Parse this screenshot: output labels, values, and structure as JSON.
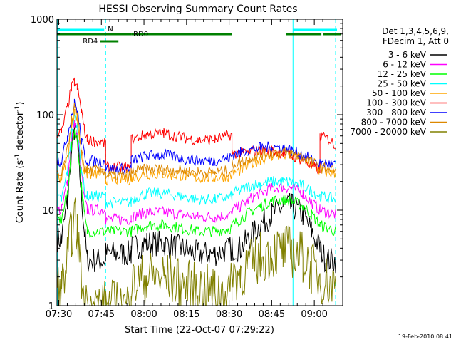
{
  "chart_data": {
    "type": "line",
    "title": "HESSI Observing Summary Count Rates",
    "xlabel": "Start Time (22-Oct-07 07:29:22)",
    "ylabel": "Count Rate (s⁻¹ detector⁻¹)",
    "ylabel_base": "Count Rate (s",
    "ylabel_exp1": "-1",
    "ylabel_mid": " detector",
    "ylabel_exp2": "-1",
    "ylabel_end": ")",
    "y_scale": "log",
    "ylim": [
      1,
      1000
    ],
    "xlim_minutes_from_0730": [
      -0.63,
      100
    ],
    "x_ticks": [
      {
        "label": "07:30",
        "min": 0
      },
      {
        "label": "07:45",
        "min": 15
      },
      {
        "label": "08:00",
        "min": 30
      },
      {
        "label": "08:15",
        "min": 45
      },
      {
        "label": "08:30",
        "min": 60
      },
      {
        "label": "08:45",
        "min": 75
      },
      {
        "label": "09:00",
        "min": 90
      }
    ],
    "y_ticks": [
      {
        "label": "1",
        "value": 1
      },
      {
        "label": "10",
        "value": 10
      },
      {
        "label": "100",
        "value": 100
      },
      {
        "label": "1000",
        "value": 1000
      }
    ],
    "legend_header": [
      "Det 1,3,4,5,6,9,",
      "FDecim 1, Att 0"
    ],
    "legend_position": "right",
    "footer_date": "19-Feb-2010 08:41",
    "flags": [
      {
        "label": "N",
        "color": "#00ffff",
        "segments": [
          [
            -0.63,
            16
          ],
          [
            82.5,
            98
          ]
        ]
      },
      {
        "label": "RD0",
        "color": "#008000",
        "segments": [
          [
            -0.63,
            25.5
          ],
          [
            25.5,
            61
          ],
          [
            80,
            92.5
          ],
          [
            93,
            99.5
          ]
        ]
      },
      {
        "label": "RD4",
        "color": "#008000",
        "segments": [
          [
            14.5,
            21
          ]
        ]
      }
    ],
    "vlines": [
      {
        "min": -0.5,
        "style": "solid",
        "color": "#00ffff"
      },
      {
        "min": 16.5,
        "style": "dashed",
        "color": "#00ffff"
      },
      {
        "min": 82.5,
        "style": "solid",
        "color": "#00ffff"
      },
      {
        "min": 97.5,
        "style": "dashed",
        "color": "#00ffff"
      }
    ],
    "series": [
      {
        "name": "3 - 6 keV",
        "color": "#000000",
        "points": [
          [
            -0.5,
            5
          ],
          [
            1,
            5
          ],
          [
            3,
            12
          ],
          [
            4.5,
            40
          ],
          [
            5.5,
            70
          ],
          [
            6.5,
            50
          ],
          [
            8,
            15
          ],
          [
            9,
            6
          ],
          [
            10,
            3
          ],
          [
            16.5,
            3
          ],
          [
            16.5,
            3.5
          ],
          [
            25.5,
            3.5
          ],
          [
            25.5,
            4
          ],
          [
            31,
            4.5
          ],
          [
            37,
            4.5
          ],
          [
            43,
            4
          ],
          [
            49,
            3.5
          ],
          [
            55,
            3.5
          ],
          [
            61,
            4
          ],
          [
            61,
            4
          ],
          [
            64,
            4
          ],
          [
            67,
            5
          ],
          [
            71,
            7
          ],
          [
            75,
            9
          ],
          [
            79,
            11
          ],
          [
            82,
            11
          ],
          [
            86,
            9
          ],
          [
            89,
            6
          ],
          [
            92,
            4
          ],
          [
            94,
            3
          ],
          [
            97.5,
            3
          ]
        ]
      },
      {
        "name": "6 - 12 keV",
        "color": "#ff00ff",
        "points": [
          [
            -0.5,
            10
          ],
          [
            1,
            10
          ],
          [
            3,
            20
          ],
          [
            4.5,
            55
          ],
          [
            5.5,
            80
          ],
          [
            6.5,
            62
          ],
          [
            8,
            25
          ],
          [
            9,
            13
          ],
          [
            10,
            10
          ],
          [
            16.5,
            10
          ],
          [
            16.5,
            8
          ],
          [
            25.5,
            8
          ],
          [
            25.5,
            8.5
          ],
          [
            31,
            9.5
          ],
          [
            37,
            9.5
          ],
          [
            43,
            9
          ],
          [
            49,
            8.5
          ],
          [
            55,
            8.5
          ],
          [
            61,
            9
          ],
          [
            61,
            10
          ],
          [
            64,
            11
          ],
          [
            67,
            13
          ],
          [
            71,
            15
          ],
          [
            75,
            17
          ],
          [
            79,
            17.5
          ],
          [
            82,
            17
          ],
          [
            86,
            15
          ],
          [
            89,
            12
          ],
          [
            92,
            10
          ],
          [
            97.5,
            9
          ]
        ]
      },
      {
        "name": "12 - 25 keV",
        "color": "#00ff00",
        "points": [
          [
            -0.5,
            8
          ],
          [
            1,
            8
          ],
          [
            3,
            15
          ],
          [
            4.5,
            45
          ],
          [
            5.5,
            70
          ],
          [
            6.5,
            55
          ],
          [
            8,
            18
          ],
          [
            9,
            9
          ],
          [
            10,
            6
          ],
          [
            16.5,
            6
          ],
          [
            16.5,
            6
          ],
          [
            25.5,
            6
          ],
          [
            25.5,
            6
          ],
          [
            31,
            7
          ],
          [
            37,
            7
          ],
          [
            43,
            6.5
          ],
          [
            49,
            6
          ],
          [
            55,
            6
          ],
          [
            61,
            6.5
          ],
          [
            61,
            7
          ],
          [
            64,
            8
          ],
          [
            67,
            9.5
          ],
          [
            71,
            11
          ],
          [
            75,
            12.5
          ],
          [
            79,
            13
          ],
          [
            82,
            12.5
          ],
          [
            86,
            11
          ],
          [
            89,
            9
          ],
          [
            92,
            7
          ],
          [
            97.5,
            6
          ]
        ]
      },
      {
        "name": "25 - 50 keV",
        "color": "#00ffff",
        "points": [
          [
            -0.5,
            13
          ],
          [
            1,
            13
          ],
          [
            3,
            25
          ],
          [
            4.5,
            65
          ],
          [
            5.5,
            95
          ],
          [
            6.5,
            75
          ],
          [
            8,
            28
          ],
          [
            9,
            16
          ],
          [
            10,
            14
          ],
          [
            16.5,
            14
          ],
          [
            16.5,
            12
          ],
          [
            25.5,
            12
          ],
          [
            25.5,
            13
          ],
          [
            31,
            15
          ],
          [
            37,
            15
          ],
          [
            43,
            14
          ],
          [
            49,
            13
          ],
          [
            55,
            13
          ],
          [
            61,
            14
          ],
          [
            61,
            15
          ],
          [
            64,
            16
          ],
          [
            67,
            18
          ],
          [
            71,
            19
          ],
          [
            75,
            20
          ],
          [
            79,
            20
          ],
          [
            82,
            19.5
          ],
          [
            86,
            18
          ],
          [
            89,
            16
          ],
          [
            92,
            14
          ],
          [
            97.5,
            13
          ]
        ]
      },
      {
        "name": "50 - 100 keV",
        "color": "#ffa500",
        "points": [
          [
            -0.5,
            22
          ],
          [
            1,
            22
          ],
          [
            3,
            35
          ],
          [
            4.5,
            80
          ],
          [
            5.5,
            110
          ],
          [
            6.5,
            90
          ],
          [
            8,
            38
          ],
          [
            9,
            26
          ],
          [
            10,
            24
          ],
          [
            16.5,
            24
          ],
          [
            16.5,
            21
          ],
          [
            25.5,
            21
          ],
          [
            25.5,
            22
          ],
          [
            31,
            24
          ],
          [
            37,
            24
          ],
          [
            43,
            23
          ],
          [
            49,
            22
          ],
          [
            55,
            22
          ],
          [
            61,
            23
          ],
          [
            61,
            24
          ],
          [
            64,
            26
          ],
          [
            67,
            30
          ],
          [
            71,
            34
          ],
          [
            75,
            37
          ],
          [
            79,
            38
          ],
          [
            82,
            37
          ],
          [
            86,
            34
          ],
          [
            89,
            30
          ],
          [
            92,
            26
          ],
          [
            97.5,
            24
          ]
        ]
      },
      {
        "name": "100 - 300 keV",
        "color": "#ff0000",
        "points": [
          [
            -0.5,
            65
          ],
          [
            1,
            65
          ],
          [
            3,
            120
          ],
          [
            4.5,
            190
          ],
          [
            5.5,
            220
          ],
          [
            6.5,
            190
          ],
          [
            8,
            110
          ],
          [
            9,
            70
          ],
          [
            10,
            55
          ],
          [
            16.5,
            50
          ],
          [
            16.5,
            28
          ],
          [
            25.5,
            28
          ],
          [
            25.5,
            55
          ],
          [
            31,
            62
          ],
          [
            37,
            64
          ],
          [
            43,
            58
          ],
          [
            49,
            54
          ],
          [
            55,
            55
          ],
          [
            61,
            62
          ],
          [
            61,
            40
          ],
          [
            64,
            39
          ],
          [
            67,
            41
          ],
          [
            71,
            42
          ],
          [
            75,
            42
          ],
          [
            79,
            40
          ],
          [
            82,
            37
          ],
          [
            86,
            34
          ],
          [
            88,
            30
          ],
          [
            90,
            28
          ],
          [
            92,
            26
          ],
          [
            92,
            60
          ],
          [
            95,
            55
          ],
          [
            97.5,
            48
          ]
        ]
      },
      {
        "name": "300 - 800 keV",
        "color": "#0000ff",
        "points": [
          [
            -0.5,
            33
          ],
          [
            1,
            33
          ],
          [
            3,
            60
          ],
          [
            4.5,
            100
          ],
          [
            5.5,
            130
          ],
          [
            6.5,
            110
          ],
          [
            8,
            55
          ],
          [
            9,
            38
          ],
          [
            10,
            33
          ],
          [
            16.5,
            32
          ],
          [
            16.5,
            27
          ],
          [
            25.5,
            27
          ],
          [
            25.5,
            33
          ],
          [
            31,
            37
          ],
          [
            37,
            38
          ],
          [
            43,
            35
          ],
          [
            49,
            33
          ],
          [
            55,
            33
          ],
          [
            61,
            36
          ],
          [
            61,
            38
          ],
          [
            64,
            40
          ],
          [
            67,
            43
          ],
          [
            71,
            45
          ],
          [
            75,
            46
          ],
          [
            79,
            45
          ],
          [
            82,
            42
          ],
          [
            86,
            38
          ],
          [
            89,
            34
          ],
          [
            92,
            31
          ],
          [
            97.5,
            30
          ]
        ]
      },
      {
        "name": "800 - 7000 keV",
        "color": "#dd8800",
        "points": [
          [
            -0.5,
            23
          ],
          [
            1,
            23
          ],
          [
            3,
            42
          ],
          [
            4.5,
            85
          ],
          [
            5.5,
            118
          ],
          [
            6.5,
            95
          ],
          [
            8,
            42
          ],
          [
            9,
            28
          ],
          [
            10,
            26
          ],
          [
            16.5,
            26
          ],
          [
            16.5,
            23
          ],
          [
            25.5,
            23
          ],
          [
            25.5,
            25
          ],
          [
            31,
            27
          ],
          [
            37,
            27
          ],
          [
            43,
            26
          ],
          [
            49,
            25
          ],
          [
            55,
            25
          ],
          [
            61,
            26
          ],
          [
            61,
            30
          ],
          [
            64,
            32
          ],
          [
            67,
            35
          ],
          [
            71,
            38
          ],
          [
            75,
            40
          ],
          [
            79,
            40
          ],
          [
            82,
            39
          ],
          [
            86,
            36
          ],
          [
            89,
            32
          ],
          [
            92,
            28
          ],
          [
            97.5,
            26
          ]
        ]
      },
      {
        "name": "7000 - 20000 keV",
        "color": "#808000",
        "points": [
          [
            -0.5,
            1.5
          ],
          [
            1,
            1.5
          ],
          [
            3,
            3
          ],
          [
            4.5,
            6
          ],
          [
            5.5,
            8
          ],
          [
            6.5,
            6
          ],
          [
            8,
            2
          ],
          [
            9,
            1
          ],
          [
            16.5,
            1
          ],
          [
            25.5,
            1
          ],
          [
            25.5,
            1.6
          ],
          [
            31,
            2
          ],
          [
            37,
            2
          ],
          [
            43,
            1.7
          ],
          [
            49,
            1.5
          ],
          [
            55,
            1.4
          ],
          [
            61,
            1.5
          ],
          [
            61,
            2
          ],
          [
            64,
            2.2
          ],
          [
            67,
            2.6
          ],
          [
            71,
            3.2
          ],
          [
            75,
            3.6
          ],
          [
            79,
            3.8
          ],
          [
            82,
            3.7
          ],
          [
            86,
            3.2
          ],
          [
            89,
            2.5
          ],
          [
            92,
            2
          ],
          [
            97.5,
            1.6
          ]
        ]
      }
    ]
  }
}
